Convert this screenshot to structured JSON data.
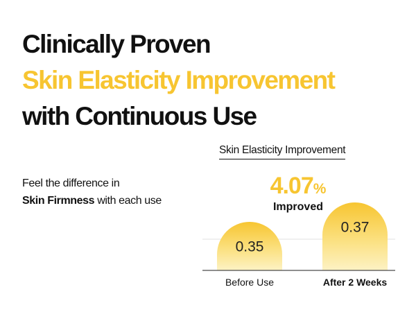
{
  "headline": {
    "line1": "Clinically Proven",
    "line2": "Skin Elasticity Improvement",
    "line3": "with Continuous Use"
  },
  "subcopy": {
    "line1": "Feel the difference in",
    "emphasis": "Skin Firmness",
    "line2_rest": " with each use"
  },
  "stat": {
    "value": "4.07",
    "unit": "%",
    "label": "Improved"
  },
  "colors": {
    "accent": "#f7c531",
    "bar_top": "#f7c531",
    "bar_bottom": "#fdf2c4",
    "text": "#111111"
  },
  "chart_data": {
    "type": "bar",
    "title": "Skin Elasticity Improvement",
    "categories": [
      "Before Use",
      "After 2 Weeks"
    ],
    "values": [
      0.35,
      0.37
    ],
    "value_labels": [
      "0.35",
      "0.37"
    ],
    "annotation": "4.07% Improved",
    "grid": true
  }
}
